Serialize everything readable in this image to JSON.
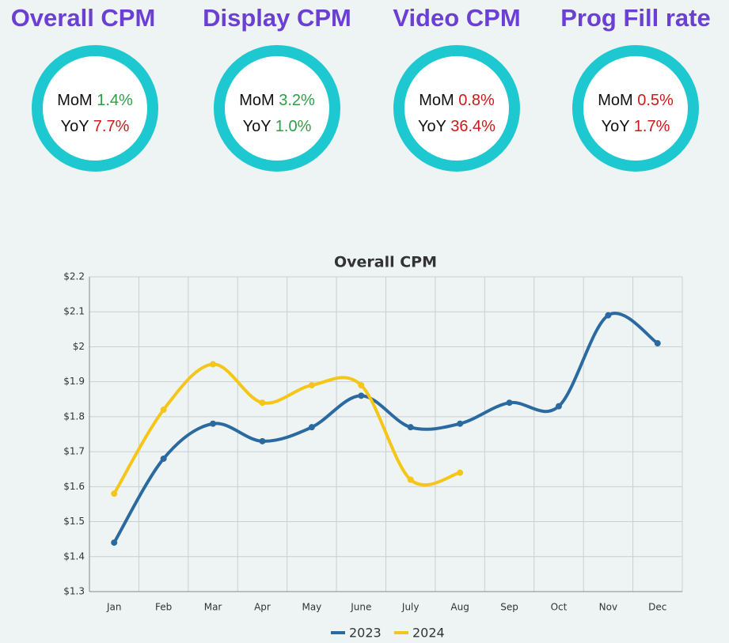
{
  "kpis": [
    {
      "title": "Overall CPM",
      "mom": {
        "label": "MoM",
        "value": "1.4%",
        "color": "#2e9e48"
      },
      "yoy": {
        "label": "YoY",
        "value": "7.7%",
        "color": "#cc1a1a"
      }
    },
    {
      "title": "Display CPM",
      "mom": {
        "label": "MoM",
        "value": "3.2%",
        "color": "#2e9e48"
      },
      "yoy": {
        "label": "YoY",
        "value": "1.0%",
        "color": "#2e9e48"
      }
    },
    {
      "title": "Video CPM",
      "mom": {
        "label": "MoM",
        "value": "0.8%",
        "color": "#cc1a1a"
      },
      "yoy": {
        "label": "YoY",
        "value": "36.4%",
        "color": "#cc1a1a"
      }
    },
    {
      "title": "Prog Fill rate",
      "mom": {
        "label": "MoM",
        "value": "0.5%",
        "color": "#cc1a1a"
      },
      "yoy": {
        "label": "YoY",
        "value": "1.7%",
        "color": "#cc1a1a"
      }
    }
  ],
  "chart_data": {
    "type": "line",
    "title": "Overall CPM",
    "categories": [
      "Jan",
      "Feb",
      "Mar",
      "Apr",
      "May",
      "June",
      "July",
      "Aug",
      "Sep",
      "Oct",
      "Nov",
      "Dec"
    ],
    "series": [
      {
        "name": "2023",
        "color": "#2b6aa0",
        "values": [
          1.44,
          1.68,
          1.78,
          1.73,
          1.77,
          1.86,
          1.77,
          1.78,
          1.84,
          1.83,
          2.09,
          2.01
        ]
      },
      {
        "name": "2024",
        "color": "#f5c518",
        "values": [
          1.58,
          1.82,
          1.95,
          1.84,
          1.89,
          1.89,
          1.62,
          1.64,
          null,
          null,
          null,
          null
        ]
      }
    ],
    "ylim": [
      1.3,
      2.2
    ],
    "yticks": [
      {
        "value": 1.3,
        "label": "$1.3"
      },
      {
        "value": 1.4,
        "label": "$1.4"
      },
      {
        "value": 1.5,
        "label": "$1.5"
      },
      {
        "value": 1.6,
        "label": "$1.6"
      },
      {
        "value": 1.7,
        "label": "$1.7"
      },
      {
        "value": 1.8,
        "label": "$1.8"
      },
      {
        "value": 1.9,
        "label": "$1.9"
      },
      {
        "value": 2,
        "label": "$2"
      },
      {
        "value": 2.1,
        "label": "$2.1"
      },
      {
        "value": 2.2,
        "label": "$2.2"
      }
    ],
    "grid": true,
    "smooth": true,
    "legend": "bottom"
  }
}
